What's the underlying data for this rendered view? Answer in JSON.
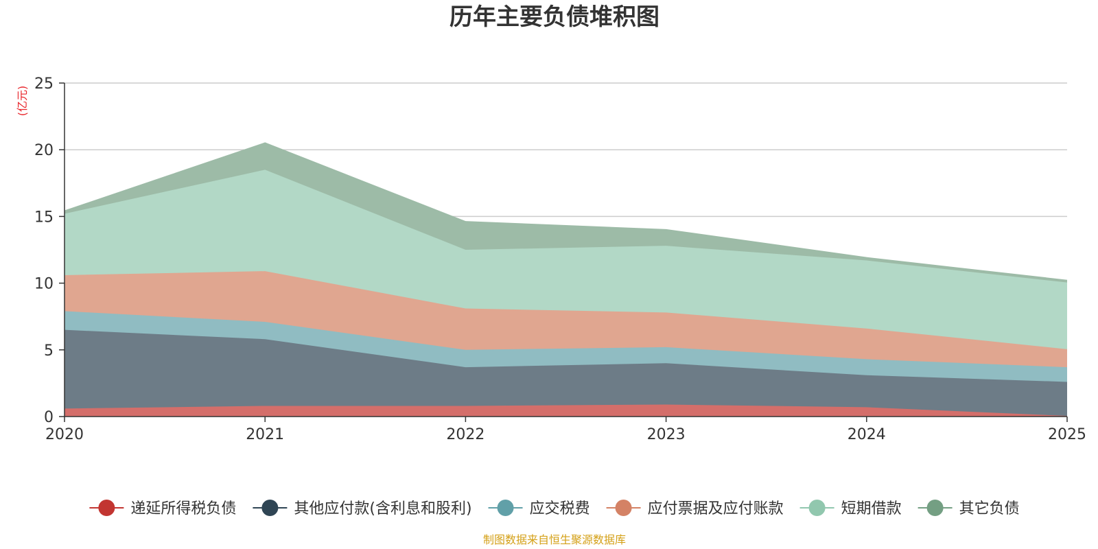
{
  "chart_data": {
    "type": "area",
    "stacked": true,
    "title": "历年主要负债堆积图",
    "ylabel": "(亿元)",
    "xlabel": "",
    "x": [
      "2020",
      "2021",
      "2022",
      "2023",
      "2024",
      "2025"
    ],
    "yticks": [
      0,
      5,
      10,
      15,
      20,
      25
    ],
    "ylim": [
      0,
      25
    ],
    "grid": true,
    "legend_position": "bottom",
    "series": [
      {
        "name": "递延所得税负债",
        "color": "#c23531",
        "fill": "#d46e6a",
        "values": [
          0.6,
          0.8,
          0.8,
          0.9,
          0.7,
          0.05
        ]
      },
      {
        "name": "其他应付款(含利息和股利)",
        "color": "#2f4554",
        "fill": "#6d7c87",
        "values": [
          5.9,
          5.0,
          2.9,
          3.1,
          2.4,
          2.55
        ]
      },
      {
        "name": "应交税费",
        "color": "#61a0a8",
        "fill": "#90bcc2",
        "values": [
          1.4,
          1.3,
          1.3,
          1.2,
          1.2,
          1.1
        ]
      },
      {
        "name": "应付票据及应付账款",
        "color": "#d48265",
        "fill": "#e0a690",
        "values": [
          2.7,
          3.8,
          3.1,
          2.6,
          2.3,
          1.35
        ]
      },
      {
        "name": "短期借款",
        "color": "#91c7ae",
        "fill": "#b2d8c6",
        "values": [
          4.6,
          7.6,
          4.4,
          5.0,
          5.1,
          5.0
        ]
      },
      {
        "name": "其它负债",
        "color": "#749f83",
        "fill": "#9dbba7",
        "values": [
          0.2,
          2.0,
          2.1,
          1.2,
          0.2,
          0.15
        ]
      }
    ],
    "source_note": "制图数据来自恒生聚源数据库"
  }
}
